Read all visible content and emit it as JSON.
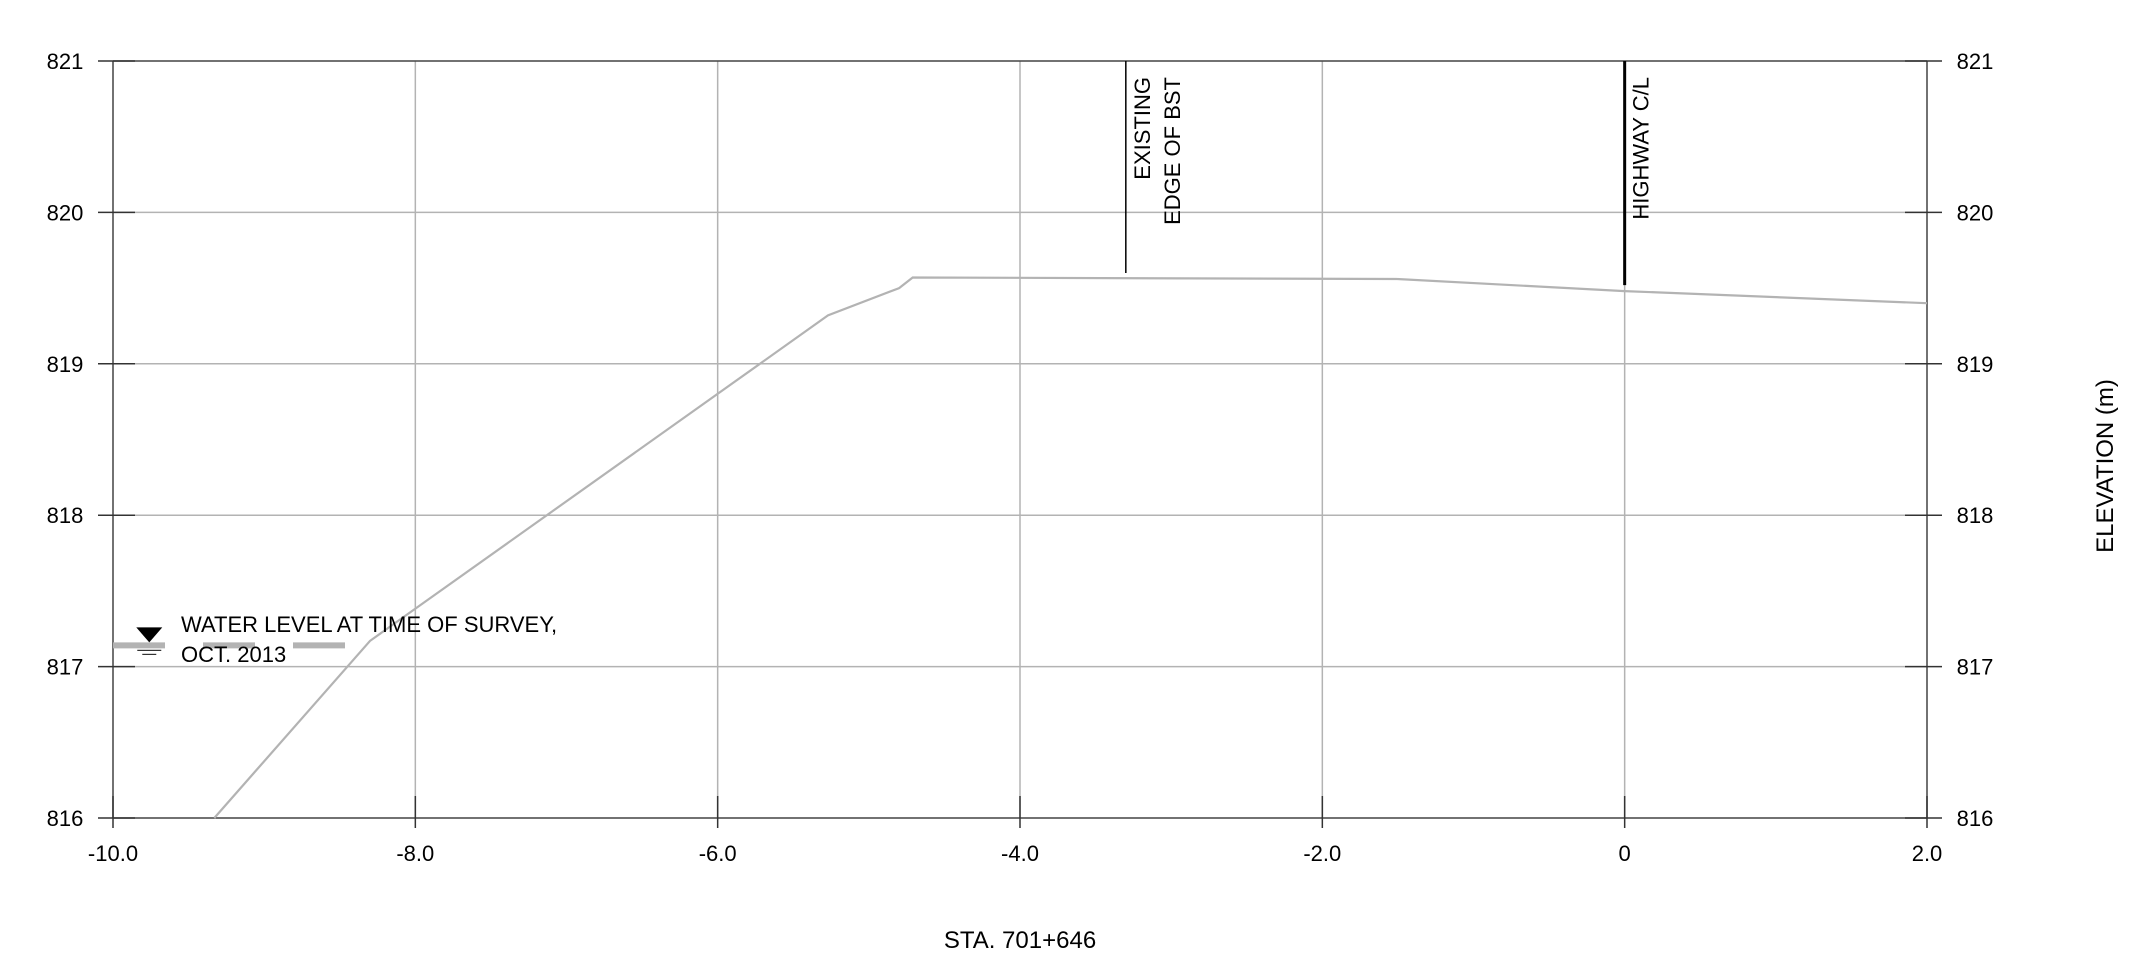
{
  "chart_data": {
    "type": "line",
    "title": "",
    "xlabel": "STA. 701+646",
    "ylabel": "ELEVATION (m)",
    "xlim": [
      -10.0,
      2.0
    ],
    "ylim": [
      816,
      821
    ],
    "x_ticks": [
      -10.0,
      -8.0,
      -6.0,
      -4.0,
      -2.0,
      0.0,
      2.0
    ],
    "x_tick_labels": [
      "-10.0",
      "-8.0",
      "-6.0",
      "-4.0",
      "-2.0",
      "0",
      "2.0"
    ],
    "y_ticks": [
      816,
      817,
      818,
      819,
      820,
      821
    ],
    "y_tick_labels": [
      "816",
      "817",
      "818",
      "819",
      "820",
      "821"
    ],
    "grid": true,
    "series": [
      {
        "color": "#b3b3b3",
        "x": [
          -9.33,
          -8.3,
          -5.27,
          -4.8,
          -4.71,
          -1.51,
          0.0,
          2.0
        ],
        "y": [
          816.0,
          817.17,
          819.32,
          819.5,
          819.57,
          819.56,
          819.48,
          819.4
        ]
      }
    ],
    "water_level": {
      "elevation": 817.14,
      "x_start": -10.0,
      "x_end": -8.3,
      "color": "#b3b3b3",
      "symbol": "triangle-down-icon"
    },
    "annotations": [
      {
        "id": "water",
        "lines": [
          "WATER LEVEL AT TIME OF SURVEY,",
          "OCT. 2013"
        ],
        "x": -9.55,
        "y": 817.23
      },
      {
        "id": "bst",
        "lines": [
          "EXISTING",
          "EDGE OF BST"
        ],
        "x": -3.3,
        "marker_y": [
          819.6,
          821.0
        ]
      },
      {
        "id": "cl",
        "lines": [
          "HIGHWAY C/L"
        ],
        "x": 0.0,
        "marker_y": [
          819.52,
          821.0
        ]
      }
    ]
  }
}
